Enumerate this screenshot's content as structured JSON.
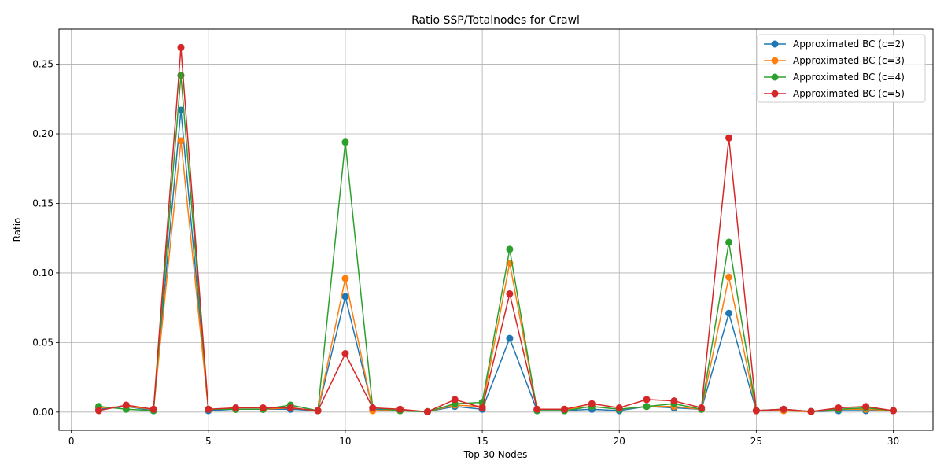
{
  "chart_data": {
    "type": "line",
    "title": "Ratio SSP/Totalnodes for Crawl",
    "xlabel": "Top 30 Nodes",
    "ylabel": "Ratio",
    "xlim": [
      -0.45,
      31.45
    ],
    "ylim": [
      -0.0131,
      0.2752
    ],
    "xticks": [
      0,
      5,
      10,
      15,
      20,
      25,
      30
    ],
    "xtick_labels": [
      "0",
      "5",
      "10",
      "15",
      "20",
      "25",
      "30"
    ],
    "yticks": [
      0.0,
      0.05,
      0.1,
      0.15,
      0.2,
      0.25
    ],
    "ytick_labels": [
      "0.00",
      "0.05",
      "0.10",
      "0.15",
      "0.20",
      "0.25"
    ],
    "grid": true,
    "legend_position": "top-right",
    "x": [
      1,
      2,
      3,
      4,
      5,
      6,
      7,
      8,
      9,
      10,
      11,
      12,
      13,
      14,
      15,
      16,
      17,
      18,
      19,
      20,
      21,
      22,
      23,
      24,
      25,
      26,
      27,
      28,
      29,
      30
    ],
    "series": [
      {
        "name": "Approximated BC (c=2)",
        "color": "#1f77b4",
        "values": [
          0.002,
          0.004,
          0.001,
          0.217,
          0.001,
          0.002,
          0.002,
          0.002,
          0.001,
          0.083,
          0.002,
          0.001,
          0.0003,
          0.004,
          0.002,
          0.053,
          0.001,
          0.001,
          0.002,
          0.001,
          0.004,
          0.003,
          0.002,
          0.071,
          0.001,
          0.002,
          0.0003,
          0.001,
          0.001,
          0.001
        ]
      },
      {
        "name": "Approximated BC (c=3)",
        "color": "#ff7f0e",
        "values": [
          0.003,
          0.004,
          0.002,
          0.195,
          0.002,
          0.002,
          0.002,
          0.003,
          0.001,
          0.096,
          0.001,
          0.001,
          0.0003,
          0.005,
          0.004,
          0.107,
          0.002,
          0.002,
          0.004,
          0.002,
          0.004,
          0.004,
          0.002,
          0.097,
          0.001,
          0.001,
          0.0002,
          0.002,
          0.002,
          0.001
        ]
      },
      {
        "name": "Approximated BC (c=4)",
        "color": "#2ca02c",
        "values": [
          0.004,
          0.002,
          0.001,
          0.242,
          0.002,
          0.002,
          0.002,
          0.005,
          0.001,
          0.194,
          0.003,
          0.001,
          0.0002,
          0.006,
          0.007,
          0.117,
          0.001,
          0.001,
          0.004,
          0.002,
          0.004,
          0.006,
          0.002,
          0.122,
          0.001,
          0.002,
          0.0004,
          0.002,
          0.003,
          0.001
        ]
      },
      {
        "name": "Approximated BC (c=5)",
        "color": "#d62728",
        "values": [
          0.001,
          0.005,
          0.002,
          0.262,
          0.002,
          0.003,
          0.003,
          0.003,
          0.001,
          0.042,
          0.003,
          0.002,
          0.0002,
          0.009,
          0.003,
          0.085,
          0.002,
          0.002,
          0.006,
          0.003,
          0.009,
          0.008,
          0.003,
          0.197,
          0.001,
          0.002,
          0.0004,
          0.003,
          0.004,
          0.001
        ]
      }
    ]
  }
}
